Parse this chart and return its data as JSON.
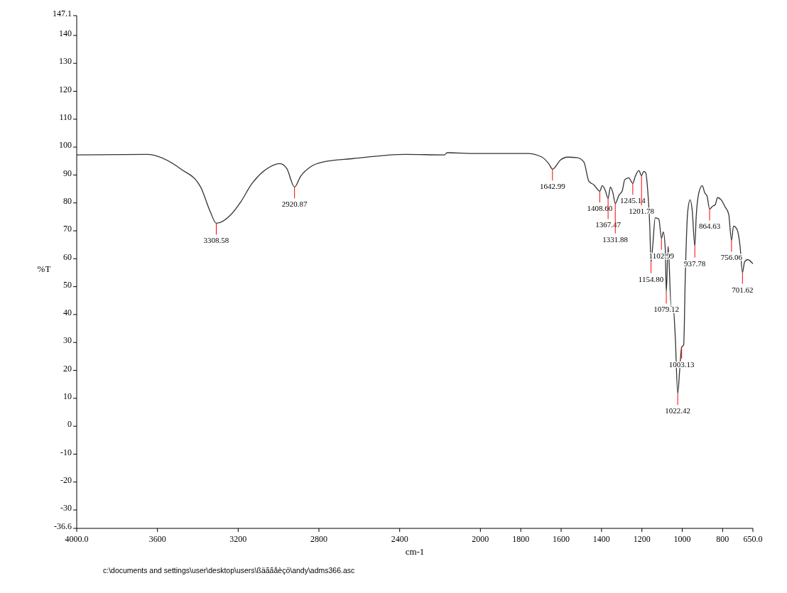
{
  "chart_data": {
    "type": "line",
    "xlabel": "cm-1",
    "ylabel": "%T",
    "xlim": [
      4000,
      650
    ],
    "ylim": [
      -36.6,
      147.1
    ],
    "xticks": [
      {
        "value": 4000,
        "label": "4000.0"
      },
      3600,
      3200,
      2800,
      2400,
      2000,
      1800,
      1600,
      1400,
      1200,
      1000,
      800,
      {
        "value": 650,
        "label": "650.0"
      }
    ],
    "yticks": [
      -36.6,
      -30,
      -20,
      -10,
      0,
      10,
      20,
      30,
      40,
      50,
      60,
      70,
      80,
      90,
      100,
      110,
      120,
      130,
      140,
      147.1
    ],
    "grid": false,
    "series": [
      {
        "color": "#333333",
        "x": [
          4000,
          3653,
          3483,
          3386,
          3338,
          3308.58,
          3236,
          3187,
          3134,
          3066,
          2993,
          2959,
          2920.87,
          2891,
          2838,
          2784,
          2629,
          2372,
          2178,
          2165,
          2023,
          1767,
          1695,
          1660,
          1642.99,
          1603,
          1569,
          1519,
          1487,
          1463,
          1438,
          1408.6,
          1396,
          1381,
          1367.47,
          1356,
          1344,
          1331.88,
          1314,
          1297,
          1285,
          1265,
          1245.14,
          1233,
          1215,
          1201.78,
          1191,
          1181,
          1171,
          1161,
          1154.8,
          1146,
          1134,
          1116,
          1102.99,
          1094,
          1084,
          1079.12,
          1070,
          1055,
          1045,
          1035,
          1022.42,
          1013,
          1003.13,
          993,
          985,
          973,
          961,
          951,
          937.78,
          931,
          919,
          901,
          889,
          877,
          864.63,
          850,
          837,
          825,
          807,
          788,
          770,
          756.06,
          746,
          728,
          714,
          701.62,
          691,
          676,
          650
        ],
        "values": [
          97.2,
          97.4,
          92.1,
          85.7,
          76.8,
          72.7,
          75.8,
          80.4,
          86.7,
          91.8,
          94.1,
          92.3,
          85.7,
          89.5,
          93.1,
          94.6,
          95.9,
          97.4,
          97.2,
          98,
          97.7,
          97.7,
          96.4,
          93.9,
          92.1,
          95.4,
          96.4,
          96.2,
          94.6,
          87.8,
          86.5,
          84.2,
          86.2,
          84.4,
          81.6,
          85.7,
          83.7,
          79.8,
          82.7,
          84.4,
          88.3,
          89,
          87,
          89.5,
          91.6,
          89.8,
          91.3,
          90.8,
          84.4,
          71.7,
          58.9,
          64.8,
          74.7,
          74.2,
          67.3,
          69.6,
          63.3,
          48,
          64.5,
          42.9,
          42.9,
          32.6,
          11.7,
          19.9,
          28.3,
          29.1,
          53.8,
          76.8,
          81.1,
          77.6,
          64.5,
          75,
          83.2,
          86.2,
          83.7,
          82.4,
          77.8,
          78.8,
          79.3,
          81.9,
          81.1,
          78.6,
          76,
          66.6,
          71.7,
          70.4,
          64.8,
          55.1,
          58.9,
          59.7,
          58.2
        ]
      }
    ],
    "annotations": [
      {
        "text": "3308.58",
        "x": 3308.58,
        "y": 72.7
      },
      {
        "text": "2920.87",
        "x": 2920.87,
        "y": 85.7
      },
      {
        "text": "1642.99",
        "x": 1642.99,
        "y": 92.1
      },
      {
        "text": "1408.60",
        "x": 1408.6,
        "y": 84.2
      },
      {
        "text": "1367.47",
        "x": 1367.47,
        "y": 81.6
      },
      {
        "text": "1331.88",
        "x": 1331.88,
        "y": 79.8
      },
      {
        "text": "1245.14",
        "x": 1245.14,
        "y": 87
      },
      {
        "text": "1201.78",
        "x": 1201.78,
        "y": 89.8
      },
      {
        "text": "1154.80",
        "x": 1154.8,
        "y": 58.9
      },
      {
        "text": "1102.99",
        "x": 1102.99,
        "y": 67.3
      },
      {
        "text": "1079.12",
        "x": 1079.12,
        "y": 48
      },
      {
        "text": "1022.42",
        "x": 1022.42,
        "y": 11.7
      },
      {
        "text": "1003.13",
        "x": 1003.13,
        "y": 28.3
      },
      {
        "text": "937.78",
        "x": 937.78,
        "y": 64.5
      },
      {
        "text": "864.63",
        "x": 864.63,
        "y": 77.8
      },
      {
        "text": "756.06",
        "x": 756.06,
        "y": 66.6
      },
      {
        "text": "701.62",
        "x": 701.62,
        "y": 55.1
      },
      "c:\\documents and settings\\user\\desktop\\users\\ßäããåèçö\\andy\\adms366.asc"
    ]
  }
}
